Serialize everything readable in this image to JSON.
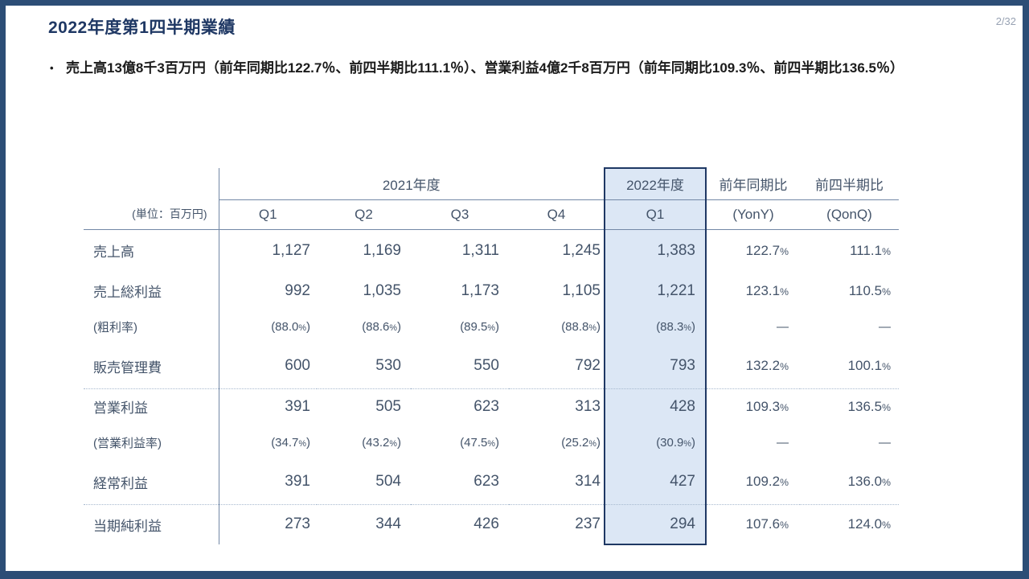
{
  "slide": {
    "title": "2022年度第1四半期業績",
    "page_number": "2/32",
    "bullet_marker": "•",
    "bullet_text": "売上高13億8千3百万円（前年同期比122.7％、前四半期比111.1％）、営業利益4億2千8百万円（前年同期比109.3％、前四半期比136.5％）"
  },
  "colors": {
    "frame": "#2C4D76",
    "title_text": "#1F3864",
    "table_text": "#44546A",
    "highlight_fill": "#DCE7F5",
    "highlight_border": "#1F3864"
  },
  "table": {
    "unit_label": "(単位：百万円)",
    "groups": {
      "fy2021": "2021年度",
      "fy2022": "2022年度",
      "yony": "前年同期比",
      "qonq": "前四半期比"
    },
    "quarters": [
      "Q1",
      "Q2",
      "Q3",
      "Q4"
    ],
    "fy22_quarter": "Q1",
    "yony_sub": "(YonY)",
    "qonq_sub": "(QonQ)",
    "rows": [
      {
        "label": "売上高",
        "cells": [
          "1,127",
          "1,169",
          "1,311",
          "1,245",
          "1,383",
          "122.7%",
          "111.1%"
        ]
      },
      {
        "label": "売上総利益",
        "cells": [
          "992",
          "1,035",
          "1,173",
          "1,105",
          "1,221",
          "123.1%",
          "110.5%"
        ]
      },
      {
        "label": "(粗利率)",
        "cells": [
          "(88.0%)",
          "(88.6%)",
          "(89.5%)",
          "(88.8%)",
          "(88.3%)",
          "—",
          "—"
        ]
      },
      {
        "label": "販売管理費",
        "cells": [
          "600",
          "530",
          "550",
          "792",
          "793",
          "132.2%",
          "100.1%"
        ]
      },
      {
        "label": "営業利益",
        "cells": [
          "391",
          "505",
          "623",
          "313",
          "428",
          "109.3%",
          "136.5%"
        ]
      },
      {
        "label": "(営業利益率)",
        "cells": [
          "(34.7%)",
          "(43.2%)",
          "(47.5%)",
          "(25.2%)",
          "(30.9%)",
          "—",
          "—"
        ]
      },
      {
        "label": "経常利益",
        "cells": [
          "391",
          "504",
          "623",
          "314",
          "427",
          "109.2%",
          "136.0%"
        ]
      },
      {
        "label": "当期純利益",
        "cells": [
          "273",
          "344",
          "426",
          "237",
          "294",
          "107.6%",
          "124.0%"
        ]
      }
    ]
  }
}
